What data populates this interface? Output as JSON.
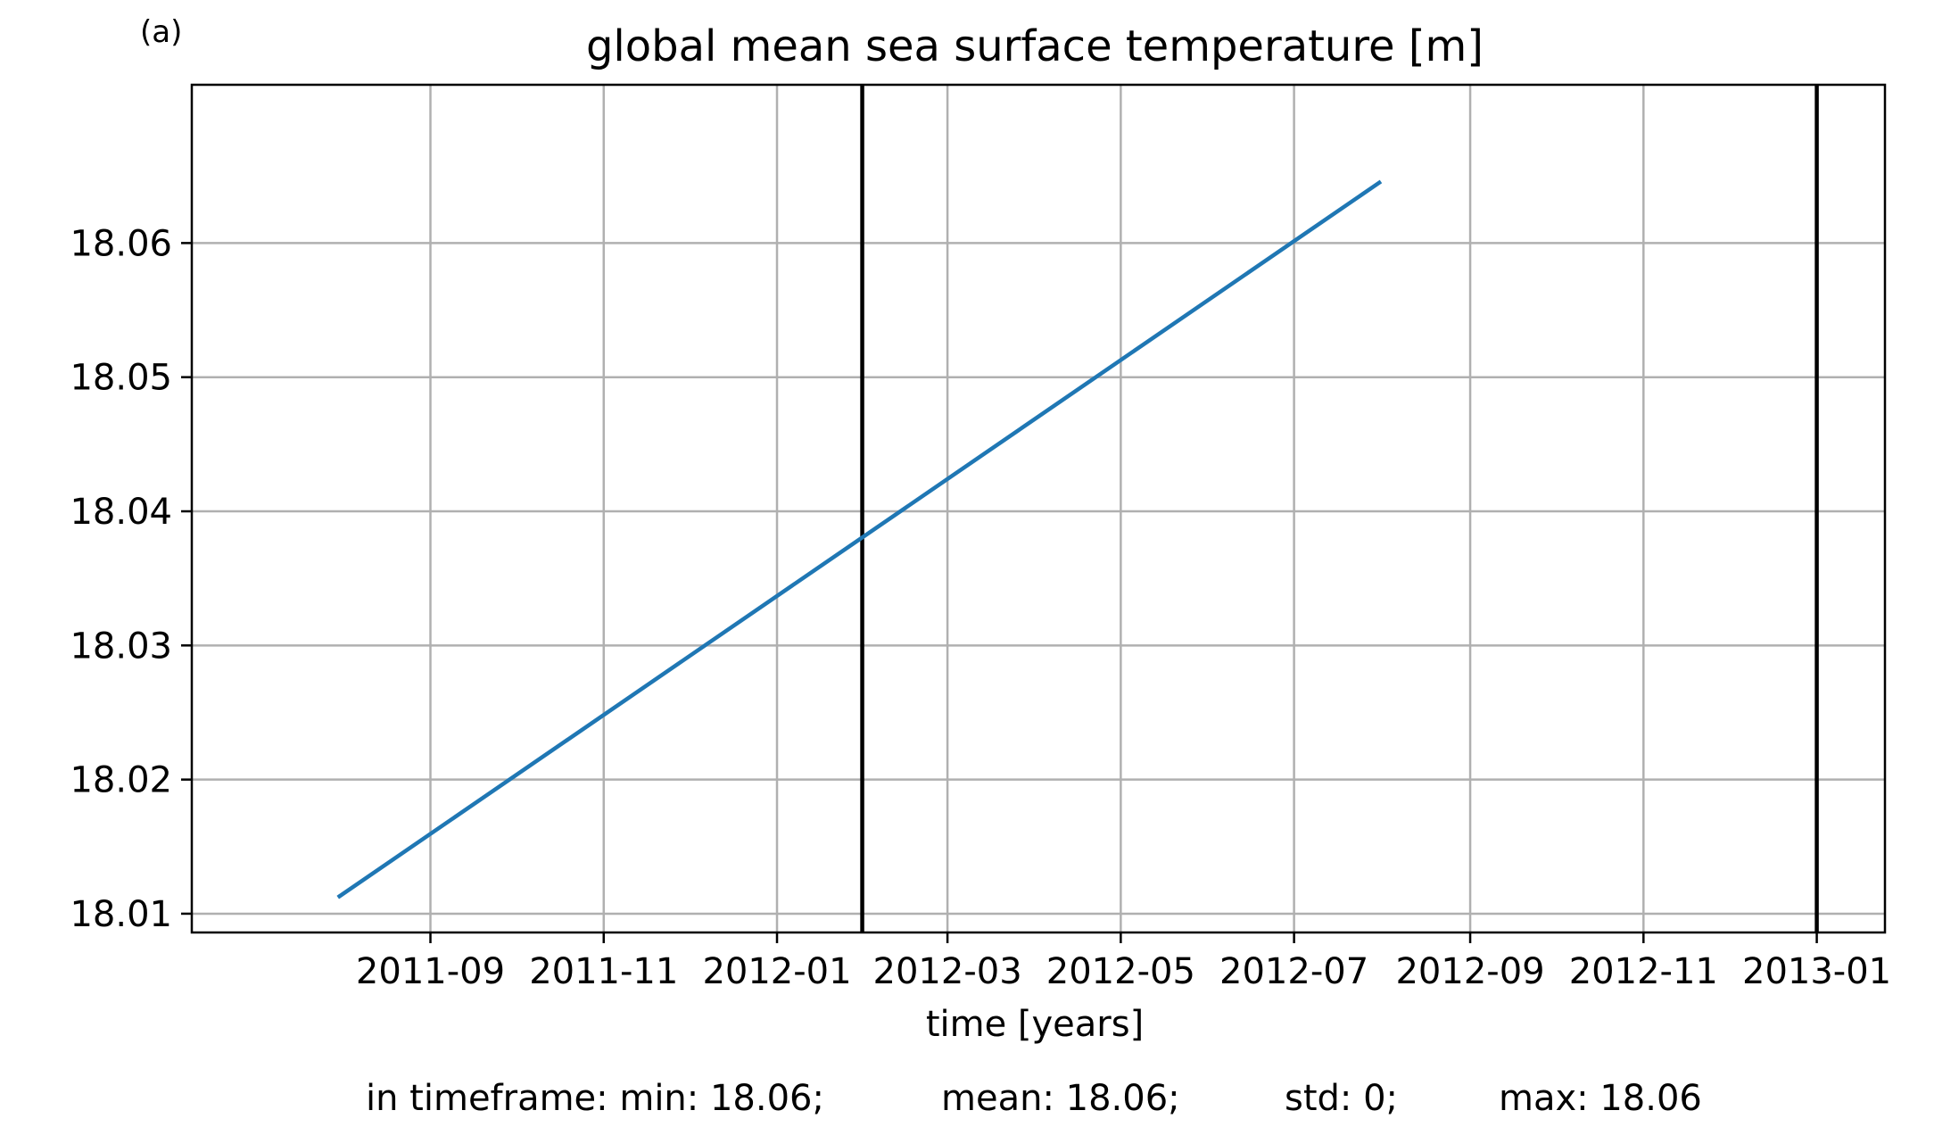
{
  "panel_label": "(a)",
  "chart_data": {
    "type": "line",
    "title": "global mean sea surface temperature [m]",
    "xlabel": "time [years]",
    "ylabel": "",
    "x_type": "date",
    "xlim": [
      "2011-06-09",
      "2013-01-25"
    ],
    "ylim": [
      18.0086,
      18.0718
    ],
    "x_ticks": [
      "2011-09-01",
      "2011-11-01",
      "2012-01-01",
      "2012-03-01",
      "2012-05-01",
      "2012-07-01",
      "2012-09-01",
      "2012-11-01",
      "2013-01-01"
    ],
    "x_tick_labels": [
      "2011-09",
      "2011-11",
      "2012-01",
      "2012-03",
      "2012-05",
      "2012-07",
      "2012-09",
      "2012-11",
      "2013-01"
    ],
    "y_ticks": [
      18.01,
      18.02,
      18.03,
      18.04,
      18.05,
      18.06
    ],
    "y_tick_labels": [
      "18.01",
      "18.02",
      "18.03",
      "18.04",
      "18.05",
      "18.06"
    ],
    "grid": true,
    "series": [
      {
        "color": "#1f77b4",
        "x": [
          "2011-07-31",
          "2012-07-31"
        ],
        "y": [
          18.0113,
          18.0645
        ]
      }
    ],
    "vertical_lines": [
      {
        "x": "2012-01-31",
        "color": "#000000"
      },
      {
        "x": "2013-01-01",
        "color": "#000000"
      }
    ]
  },
  "stats": {
    "min": "in timeframe: min: 18.06;",
    "mean": "mean: 18.06;",
    "std": "std: 0;",
    "max": "max: 18.06"
  }
}
